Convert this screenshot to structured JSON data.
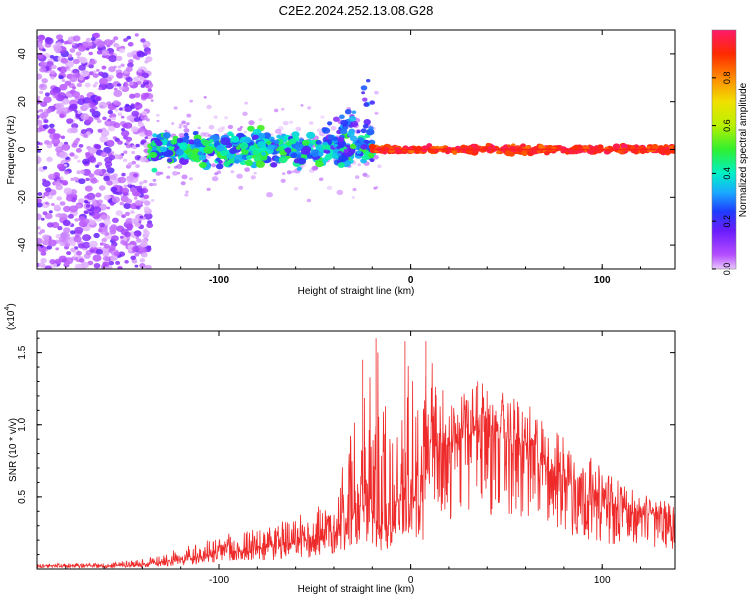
{
  "figure": {
    "title": "C2E2.2024.252.13.08.G28"
  },
  "colors": {
    "axis": "#000000",
    "snr_line": "#ee2a2a",
    "points_purple": "#7a1cf0",
    "points_light": "#c9b6ff",
    "ridge_red": "#ff2020"
  },
  "chart_data": [
    {
      "type": "scatter",
      "title": "C2E2.2024.252.13.08.G28",
      "xlabel": "Height of straight line (km)",
      "ylabel": "Frequency (Hz)",
      "xlim": [
        -195,
        138
      ],
      "ylim": [
        -50,
        50
      ],
      "x_ticks": [
        -100,
        0,
        100
      ],
      "y_ticks": [
        -40,
        -20,
        0,
        20,
        40
      ],
      "grid": false,
      "legend": "none",
      "colorbar": {
        "label": "Normalized spectral amplitude",
        "range": [
          0.0,
          1.0
        ],
        "ticks": [
          0.0,
          0.2,
          0.4,
          0.6,
          0.8
        ],
        "colormap": "hsv (purple → blue → cyan → green → yellow → orange → red → magenta)"
      },
      "series": [
        {
          "description_segments": [
            {
              "x_range": [
                -195,
                -136
              ],
              "y_range": [
                -50,
                48
              ],
              "amplitude": "low (0.0-0.15)",
              "note": "scattered noise filling the full frequency range"
            },
            {
              "x_range": [
                -136,
                -20
              ],
              "y_center": 0,
              "y_spread": 8,
              "amplitude": "0.2-0.5"
            },
            {
              "x_range": [
                -45,
                -20
              ],
              "trend_upper": [
                [
                  -45,
                  10
                ],
                [
                  -30,
                  15
                ],
                [
                  -20,
                  36
                ]
              ],
              "amplitude": "0.1-0.4"
            },
            {
              "x_range": [
                -20,
                138
              ],
              "y_center": 0,
              "y_spread": 1.5,
              "amplitude": "0.8-1.0",
              "note": "narrow high-amplitude ridge at 0 Hz"
            }
          ]
        }
      ]
    },
    {
      "type": "line",
      "title": "",
      "xlabel": "Height of straight line (km)",
      "ylabel": "SNR (10 * v/v)",
      "y_multiplier_label": "(x10",
      "y_multiplier_exp": "4",
      "xlim": [
        -195,
        138
      ],
      "ylim": [
        0,
        1.65
      ],
      "x_ticks": [
        -100,
        0,
        100
      ],
      "y_ticks": [
        0.5,
        1.0,
        1.5
      ],
      "y_tick_labels": [
        "0.5",
        "1.0",
        "1.5"
      ],
      "grid": false,
      "legend": "none",
      "series": [
        {
          "color": "#ee2a2a",
          "envelope": {
            "x": [
              -195,
              -160,
              -140,
              -120,
              -100,
              -80,
              -60,
              -40,
              -30,
              -22,
              -18,
              -14,
              -8,
              -2,
              5,
              10,
              20,
              40,
              60,
              80,
              100,
              120,
              138
            ],
            "base": [
              0.02,
              0.02,
              0.03,
              0.06,
              0.1,
              0.13,
              0.17,
              0.25,
              0.35,
              0.45,
              0.3,
              0.25,
              0.4,
              0.6,
              0.35,
              0.8,
              0.85,
              0.95,
              0.8,
              0.6,
              0.45,
              0.38,
              0.35
            ],
            "peak": [
              0.04,
              0.04,
              0.07,
              0.15,
              0.23,
              0.3,
              0.35,
              0.55,
              1.0,
              1.45,
              1.6,
              1.2,
              1.05,
              1.58,
              1.1,
              1.58,
              1.2,
              1.3,
              1.15,
              0.95,
              0.7,
              0.52,
              0.45
            ]
          },
          "noted_peaks": [
            [
              -25,
              1.45
            ],
            [
              -18,
              1.6
            ],
            [
              -3,
              1.58
            ],
            [
              8,
              1.58
            ],
            [
              35,
              1.3
            ]
          ]
        }
      ]
    }
  ]
}
